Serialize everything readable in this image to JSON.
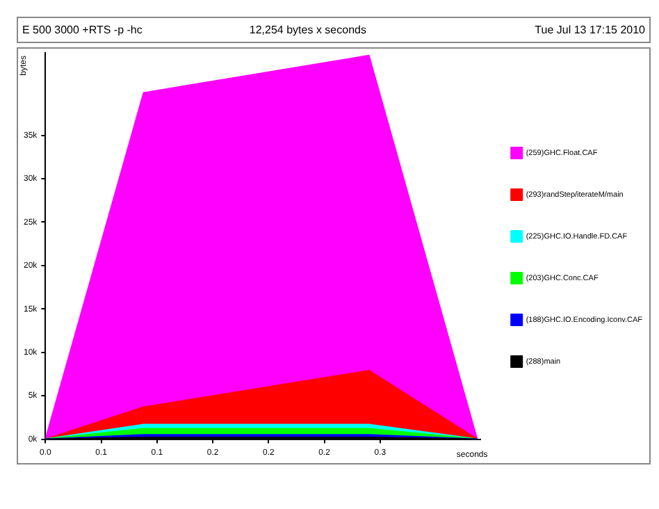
{
  "chart_data": {
    "type": "area",
    "title": "E 500 3000 +RTS -p -hc",
    "subtitle": "12,254 bytes x seconds",
    "annotations": [
      "Tue Jul 13 17:15 2010"
    ],
    "ylabel": "bytes",
    "xlabel": "seconds",
    "x": [
      0,
      0.088,
      0.29,
      0.387
    ],
    "stacked": true,
    "marker": "none",
    "legend": "right",
    "xlim": [
      0,
      0.39
    ],
    "xticks": [
      {
        "value": 0,
        "label": "0.0"
      },
      {
        "value": 0.05,
        "label": "0.1"
      },
      {
        "value": 0.1,
        "label": "0.1"
      },
      {
        "value": 0.15,
        "label": "0.2"
      },
      {
        "value": 0.2,
        "label": "0.2"
      },
      {
        "value": 0.25,
        "label": "0.2"
      },
      {
        "value": 0.3,
        "label": "0.3"
      }
    ],
    "ylim": [
      0,
      44500
    ],
    "yticks": [
      {
        "value": 0,
        "label": "0k"
      },
      {
        "value": 5000,
        "label": "5k"
      },
      {
        "value": 10000,
        "label": "10k"
      },
      {
        "value": 15000,
        "label": "15k"
      },
      {
        "value": 20000,
        "label": "20k"
      },
      {
        "value": 25000,
        "label": "25k"
      },
      {
        "value": 30000,
        "label": "30k"
      },
      {
        "value": 35000,
        "label": "35k"
      }
    ],
    "series": [
      {
        "name": "(288)main",
        "color": "#000000",
        "values": [
          0,
          200,
          200,
          0
        ]
      },
      {
        "name": "(188)GHC.IO.Encoding.Iconv.CAF",
        "color": "#0000ff",
        "values": [
          0,
          300,
          300,
          0
        ]
      },
      {
        "name": "(203)GHC.Conc.CAF",
        "color": "#00ff00",
        "values": [
          0,
          700,
          700,
          0
        ]
      },
      {
        "name": "(225)GHC.IO.Handle.FD.CAF",
        "color": "#00ffff",
        "values": [
          0,
          500,
          500,
          0
        ]
      },
      {
        "name": "(293)randStep/iterateM/main",
        "color": "#ff0000",
        "values": [
          0,
          2000,
          6200,
          0
        ]
      },
      {
        "name": "(259)GHC.Float.CAF",
        "color": "#ff00ff",
        "values": [
          0,
          36200,
          36300,
          0
        ]
      }
    ]
  }
}
